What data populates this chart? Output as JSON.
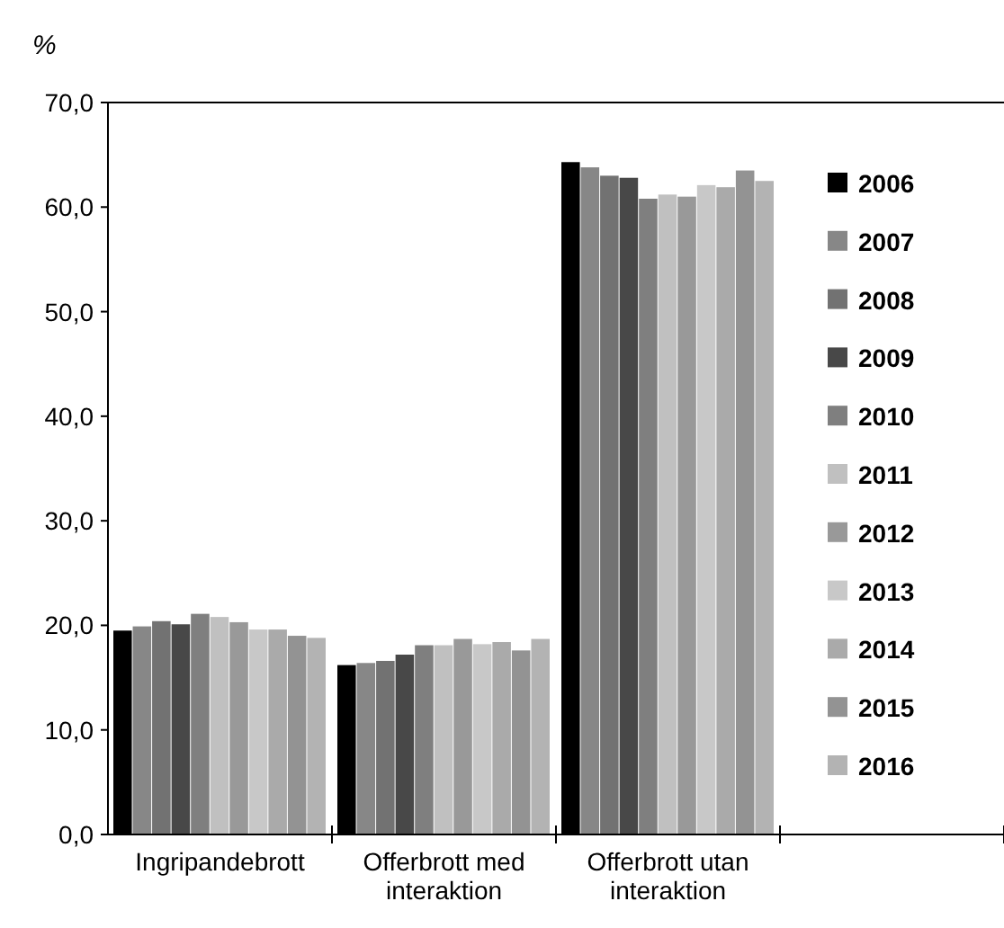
{
  "chart_data": {
    "type": "bar",
    "ylabel": "%",
    "categories": [
      "Ingripandebrott",
      "Offerbrott med interaktion",
      "Offerbrott utan interaktion",
      null
    ],
    "series": [
      {
        "name": "2006",
        "color": "#000000",
        "values": [
          19.5,
          16.2,
          64.3,
          null
        ]
      },
      {
        "name": "2007",
        "color": "#878787",
        "values": [
          19.9,
          16.4,
          63.8,
          null
        ]
      },
      {
        "name": "2008",
        "color": "#727272",
        "values": [
          20.4,
          16.6,
          63.0,
          null
        ]
      },
      {
        "name": "2009",
        "color": "#484848",
        "values": [
          20.1,
          17.2,
          62.8,
          null
        ]
      },
      {
        "name": "2010",
        "color": "#7f7f7f",
        "values": [
          21.1,
          18.1,
          60.8,
          null
        ]
      },
      {
        "name": "2011",
        "color": "#c0c0c0",
        "values": [
          20.8,
          18.1,
          61.2,
          null
        ]
      },
      {
        "name": "2012",
        "color": "#999999",
        "values": [
          20.3,
          18.7,
          61.0,
          null
        ]
      },
      {
        "name": "2013",
        "color": "#c8c8c8",
        "values": [
          19.6,
          18.2,
          62.1,
          null
        ]
      },
      {
        "name": "2014",
        "color": "#aaaaaa",
        "values": [
          19.6,
          18.4,
          61.9,
          null
        ]
      },
      {
        "name": "2015",
        "color": "#939393",
        "values": [
          19.0,
          17.6,
          63.5,
          null
        ]
      },
      {
        "name": "2016",
        "color": "#b3b3b3",
        "values": [
          18.8,
          18.7,
          62.5,
          null
        ]
      }
    ],
    "ylim": [
      0,
      70
    ],
    "yticks": [
      {
        "value": 0,
        "label": "0,0"
      },
      {
        "value": 10,
        "label": "10,0"
      },
      {
        "value": 20,
        "label": "20,0"
      },
      {
        "value": 30,
        "label": "30,0"
      },
      {
        "value": 40,
        "label": "40,0"
      },
      {
        "value": 50,
        "label": "50,0"
      },
      {
        "value": 60,
        "label": "60,0"
      },
      {
        "value": 70,
        "label": "70,0"
      }
    ],
    "grid": false,
    "legend": "right"
  }
}
